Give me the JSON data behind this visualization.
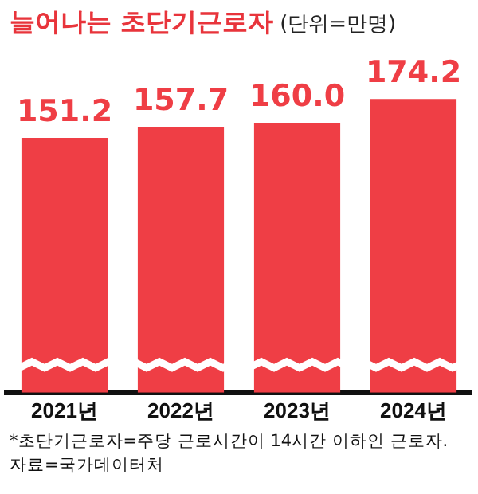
{
  "chart_data": {
    "type": "bar",
    "title": "늘어나는 초단기근로자",
    "subtitle": "(단위=만명)",
    "categories": [
      "2021년",
      "2022년",
      "2023년",
      "2024년"
    ],
    "values": [
      151.2,
      157.7,
      160.0,
      174.2
    ],
    "color": "#ef3e45",
    "value_labels": [
      "151.2",
      "157.7",
      "160.0",
      "174.2"
    ],
    "grid": false,
    "legend": false,
    "annotations": [
      "*초단기근로자=주당 근로시간이 14시간 이하인 근로자.",
      "자료=국가데이터처"
    ]
  }
}
